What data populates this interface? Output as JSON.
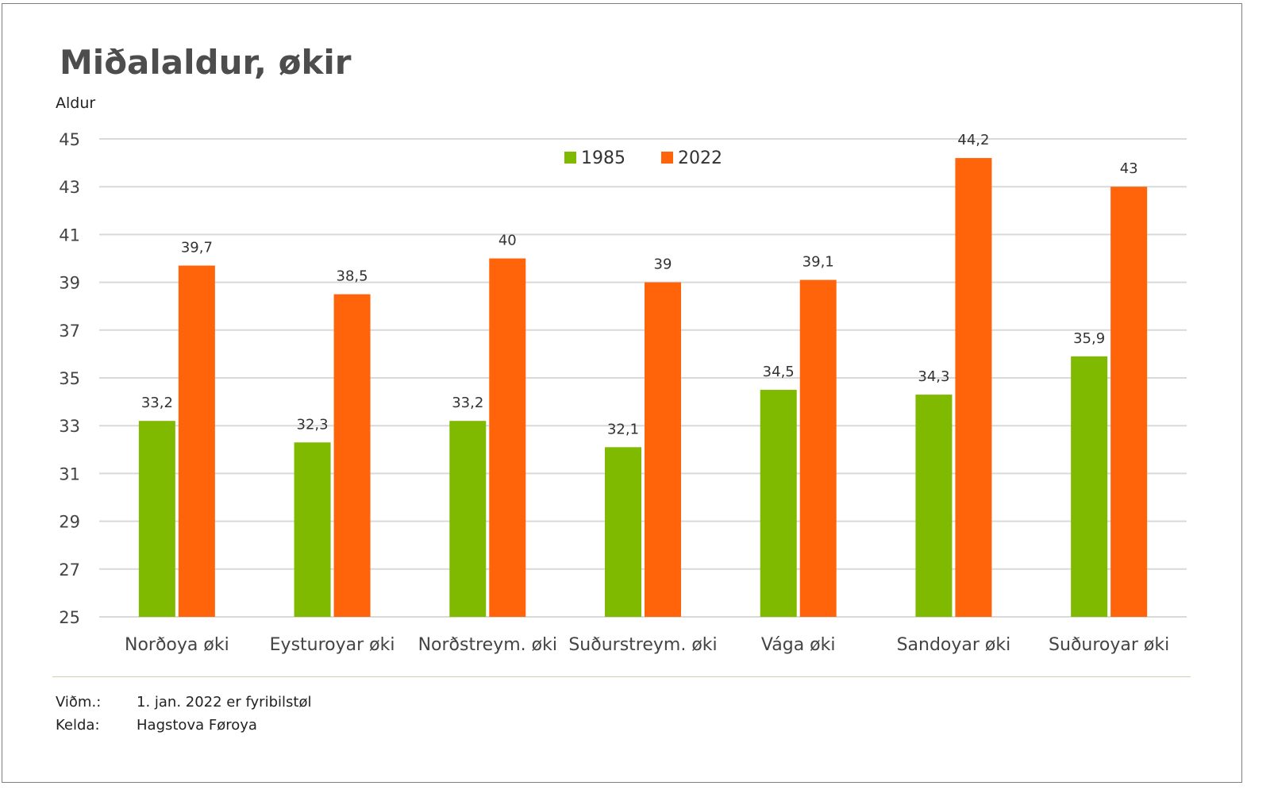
{
  "title": "Miðalaldur, økir",
  "footer": {
    "note_label": "Viðm.:",
    "note_text": "1. jan. 2022 er fyribilstøl",
    "source_label": "Kelda:",
    "source_text": "Hagstova Føroya"
  },
  "chart_data": {
    "type": "bar",
    "title": "Miðalaldur, økir",
    "ylabel": "Aldur",
    "xlabel": "",
    "ylim": [
      25,
      45
    ],
    "yticks": [
      25,
      27,
      29,
      31,
      33,
      35,
      37,
      39,
      41,
      43,
      45
    ],
    "grid": true,
    "legend_position": "top-center",
    "categories": [
      "Norðoya øki",
      "Eysturoyar øki",
      "Norðstreym. øki",
      "Suðurstreym. øki",
      "Vága øki",
      "Sandoyar øki",
      "Suðuroyar øki"
    ],
    "series": [
      {
        "name": "1985",
        "color": "#7fba00",
        "values": [
          33.2,
          32.3,
          33.2,
          32.1,
          34.5,
          34.3,
          35.9
        ],
        "labels": [
          "33,2",
          "32,3",
          "33,2",
          "32,1",
          "34,5",
          "34,3",
          "35,9"
        ]
      },
      {
        "name": "2022",
        "color": "#ff640a",
        "values": [
          39.7,
          38.5,
          40,
          39,
          39.1,
          44.2,
          43
        ],
        "labels": [
          "39,7",
          "38,5",
          "40",
          "39",
          "39,1",
          "44,2",
          "43"
        ]
      }
    ]
  }
}
